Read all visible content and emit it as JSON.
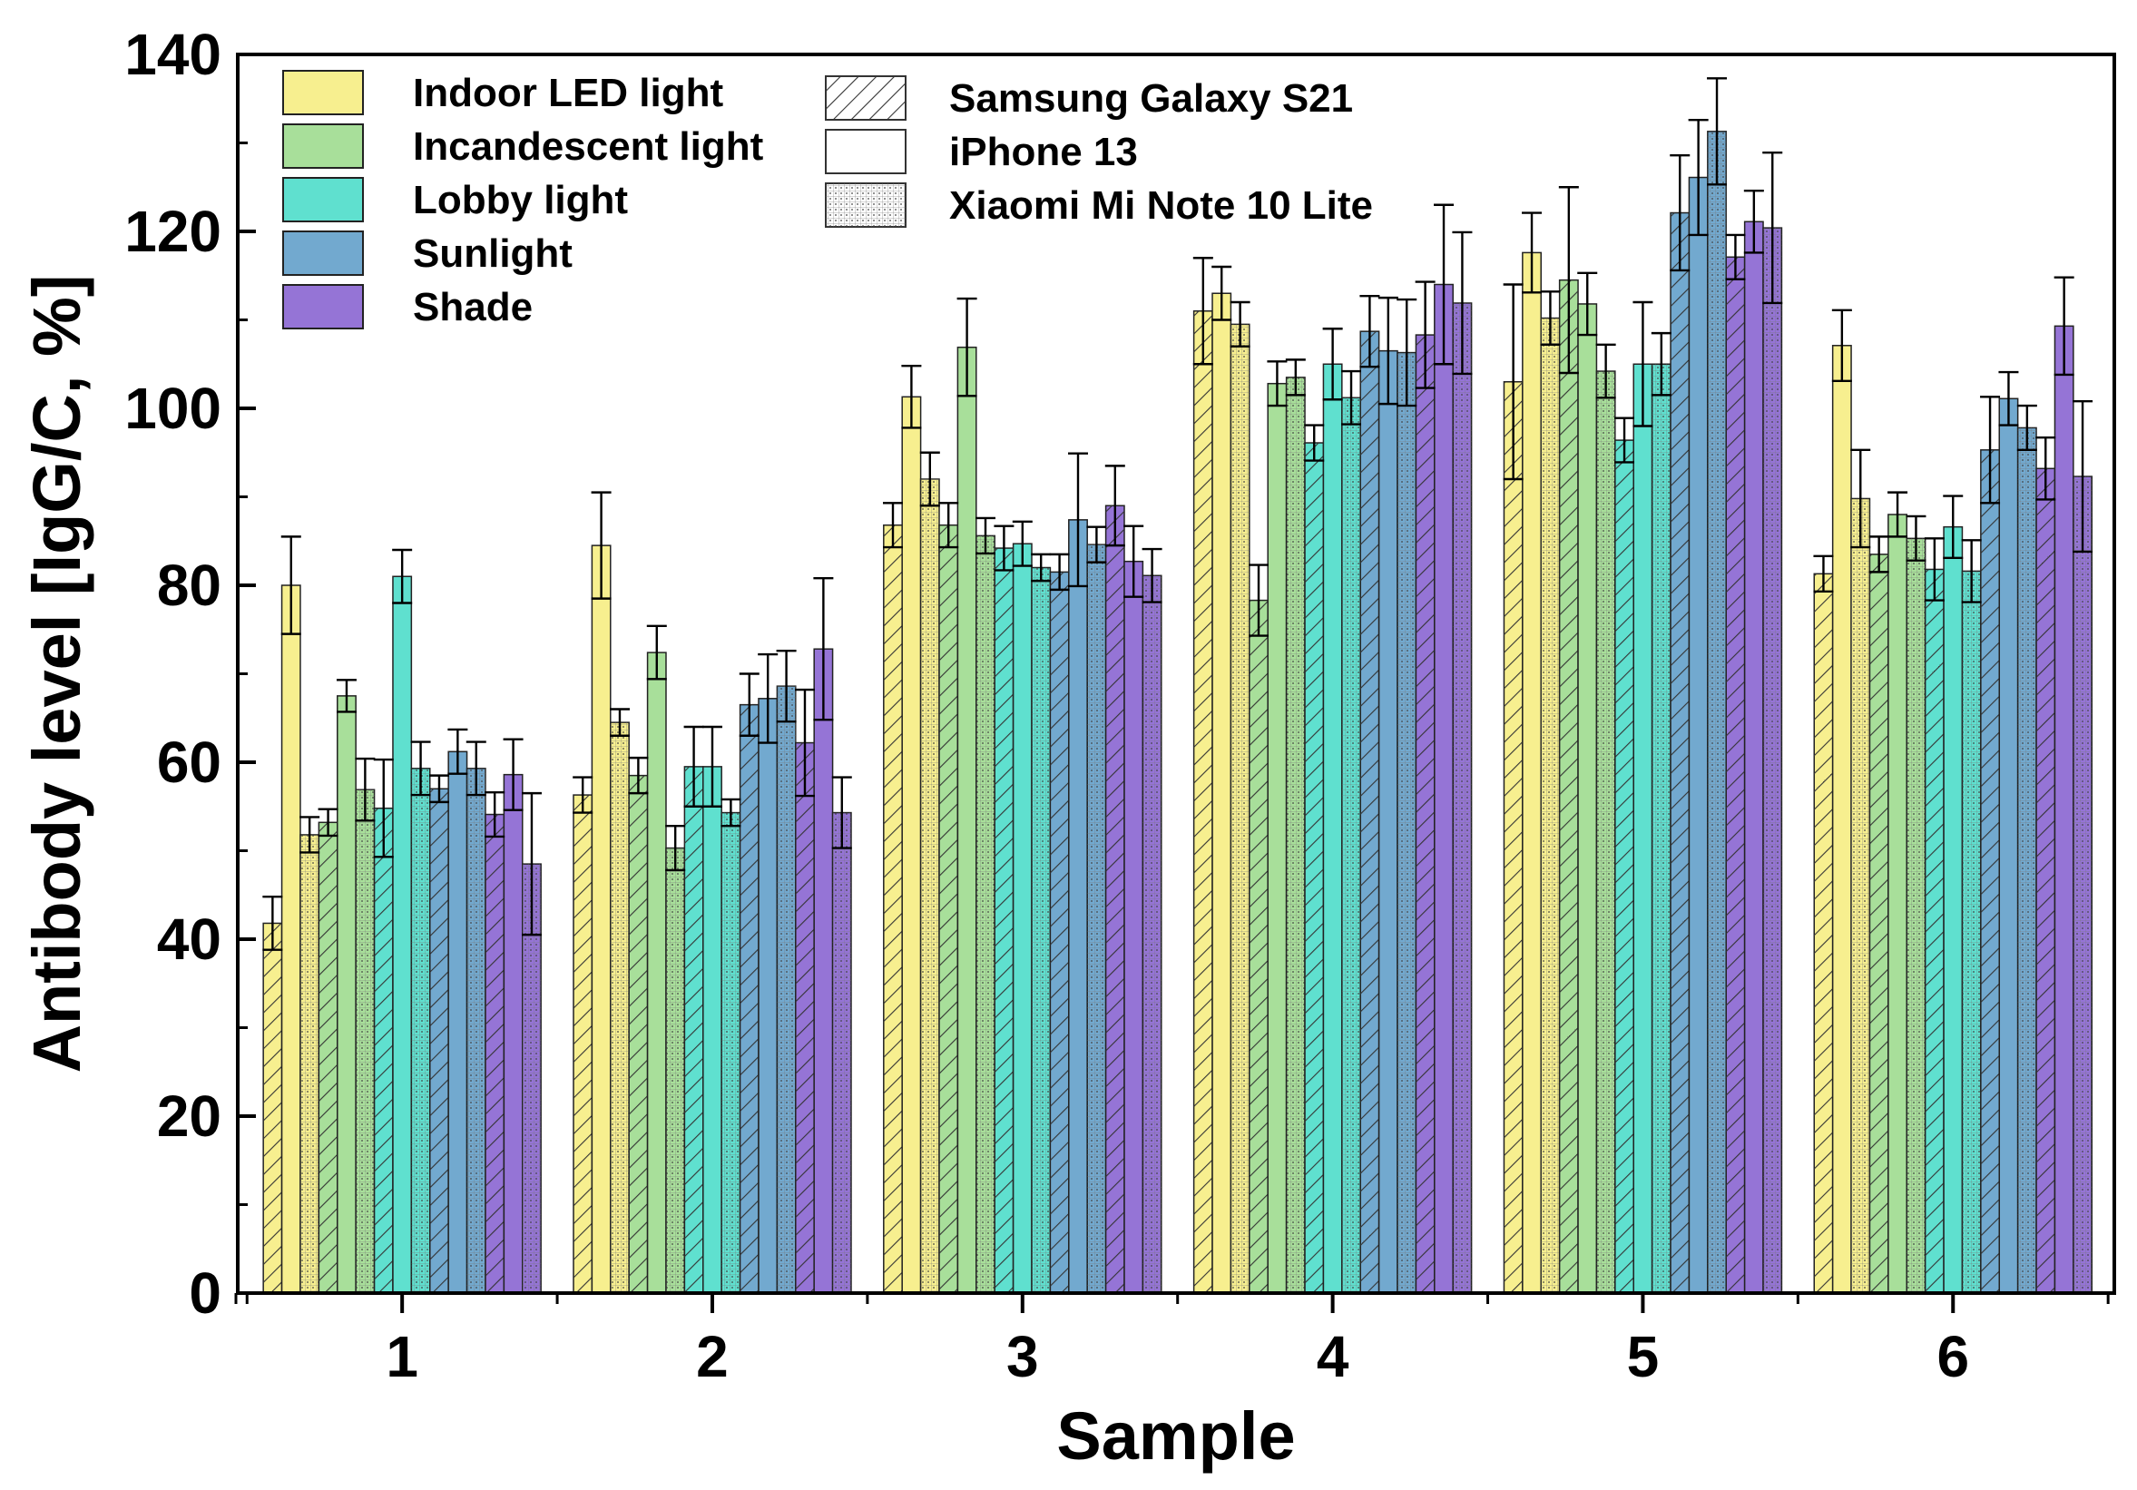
{
  "chart_data": {
    "type": "bar",
    "title": "",
    "xlabel": "Sample",
    "ylabel": "Antibody level [IgG/C, %]",
    "ylim": [
      0,
      140
    ],
    "yticks": [
      0,
      20,
      40,
      60,
      80,
      100,
      120,
      140
    ],
    "categories": [
      "1",
      "2",
      "3",
      "4",
      "5",
      "6"
    ],
    "grid": false,
    "legend_position": "top-left",
    "lighting_conditions": [
      {
        "name": "Indoor LED light",
        "color": "#f7ef8f"
      },
      {
        "name": "Incandescent light",
        "color": "#a8df9a"
      },
      {
        "name": "Lobby light",
        "color": "#5fe0cf"
      },
      {
        "name": "Sunlight",
        "color": "#72a9cf"
      },
      {
        "name": "Shade",
        "color": "#9574d6"
      }
    ],
    "devices": [
      {
        "name": "Samsung Galaxy S21",
        "pattern": "hatch"
      },
      {
        "name": "iPhone 13",
        "pattern": "plain"
      },
      {
        "name": "Xiaomi Mi Note 10 Lite",
        "pattern": "dots"
      }
    ],
    "series": [
      {
        "light": "Indoor LED light",
        "device": "Samsung Galaxy S21",
        "values": [
          41.8,
          56.3,
          86.8,
          111.0,
          103.0,
          81.3
        ],
        "errors": [
          3.0,
          2.0,
          2.5,
          6.0,
          11.0,
          2.0
        ]
      },
      {
        "light": "Indoor LED light",
        "device": "iPhone 13",
        "values": [
          80.0,
          84.5,
          101.3,
          113.0,
          117.6,
          107.1
        ],
        "errors": [
          5.5,
          6.0,
          3.5,
          3.0,
          4.5,
          4.0
        ]
      },
      {
        "light": "Indoor LED light",
        "device": "Xiaomi Mi Note 10 Lite",
        "values": [
          51.8,
          64.5,
          92.0,
          109.5,
          110.2,
          89.8
        ],
        "errors": [
          2.0,
          1.5,
          3.0,
          2.5,
          3.0,
          5.5
        ]
      },
      {
        "light": "Incandescent light",
        "device": "Samsung Galaxy S21",
        "values": [
          53.2,
          58.5,
          86.8,
          78.3,
          114.5,
          83.5
        ],
        "errors": [
          1.5,
          2.0,
          2.5,
          4.0,
          10.5,
          2.0
        ]
      },
      {
        "light": "Incandescent light",
        "device": "iPhone 13",
        "values": [
          67.5,
          72.4,
          106.9,
          102.8,
          111.8,
          88.0
        ],
        "errors": [
          1.8,
          3.0,
          5.5,
          2.5,
          3.5,
          2.5
        ]
      },
      {
        "light": "Incandescent light",
        "device": "Xiaomi Mi Note 10 Lite",
        "values": [
          56.9,
          50.3,
          85.6,
          103.5,
          104.2,
          85.3
        ],
        "errors": [
          3.5,
          2.5,
          2.0,
          2.0,
          3.0,
          2.5
        ]
      },
      {
        "light": "Lobby light",
        "device": "Samsung Galaxy S21",
        "values": [
          54.8,
          59.5,
          84.2,
          96.1,
          96.4,
          81.8
        ],
        "errors": [
          5.5,
          4.5,
          2.5,
          2.0,
          2.5,
          3.5
        ]
      },
      {
        "light": "Lobby light",
        "device": "iPhone 13",
        "values": [
          81.0,
          59.5,
          84.7,
          105.0,
          105.0,
          86.6
        ],
        "errors": [
          3.0,
          4.5,
          2.5,
          4.0,
          7.0,
          3.5
        ]
      },
      {
        "light": "Lobby light",
        "device": "Xiaomi Mi Note 10 Lite",
        "values": [
          59.3,
          54.3,
          82.0,
          101.2,
          105.0,
          81.6
        ],
        "errors": [
          3.0,
          1.5,
          1.5,
          3.0,
          3.5,
          3.5
        ]
      },
      {
        "light": "Sunlight",
        "device": "Samsung Galaxy S21",
        "values": [
          57.0,
          66.5,
          81.5,
          108.7,
          122.1,
          95.3
        ],
        "errors": [
          1.5,
          3.5,
          2.0,
          4.0,
          6.5,
          6.0
        ]
      },
      {
        "light": "Sunlight",
        "device": "iPhone 13",
        "values": [
          61.2,
          67.2,
          87.4,
          106.5,
          126.1,
          101.1
        ],
        "errors": [
          2.5,
          5.0,
          7.5,
          6.0,
          6.5,
          3.0
        ]
      },
      {
        "light": "Sunlight",
        "device": "Xiaomi Mi Note 10 Lite",
        "values": [
          59.3,
          68.6,
          84.6,
          106.3,
          131.3,
          97.8
        ],
        "errors": [
          3.0,
          4.0,
          2.0,
          6.0,
          6.0,
          2.5
        ]
      },
      {
        "light": "Shade",
        "device": "Samsung Galaxy S21",
        "values": [
          54.1,
          62.2,
          89.0,
          108.3,
          117.1,
          93.2
        ],
        "errors": [
          2.5,
          6.0,
          4.5,
          6.0,
          2.5,
          3.5
        ]
      },
      {
        "light": "Shade",
        "device": "iPhone 13",
        "values": [
          58.6,
          72.8,
          82.7,
          114.0,
          121.1,
          109.3
        ],
        "errors": [
          4.0,
          8.0,
          4.0,
          9.0,
          3.5,
          5.5
        ]
      },
      {
        "light": "Shade",
        "device": "Xiaomi Mi Note 10 Lite",
        "values": [
          48.5,
          54.3,
          81.1,
          111.9,
          120.4,
          92.3
        ],
        "errors": [
          8.0,
          4.0,
          3.0,
          8.0,
          8.5,
          8.5
        ]
      }
    ]
  }
}
